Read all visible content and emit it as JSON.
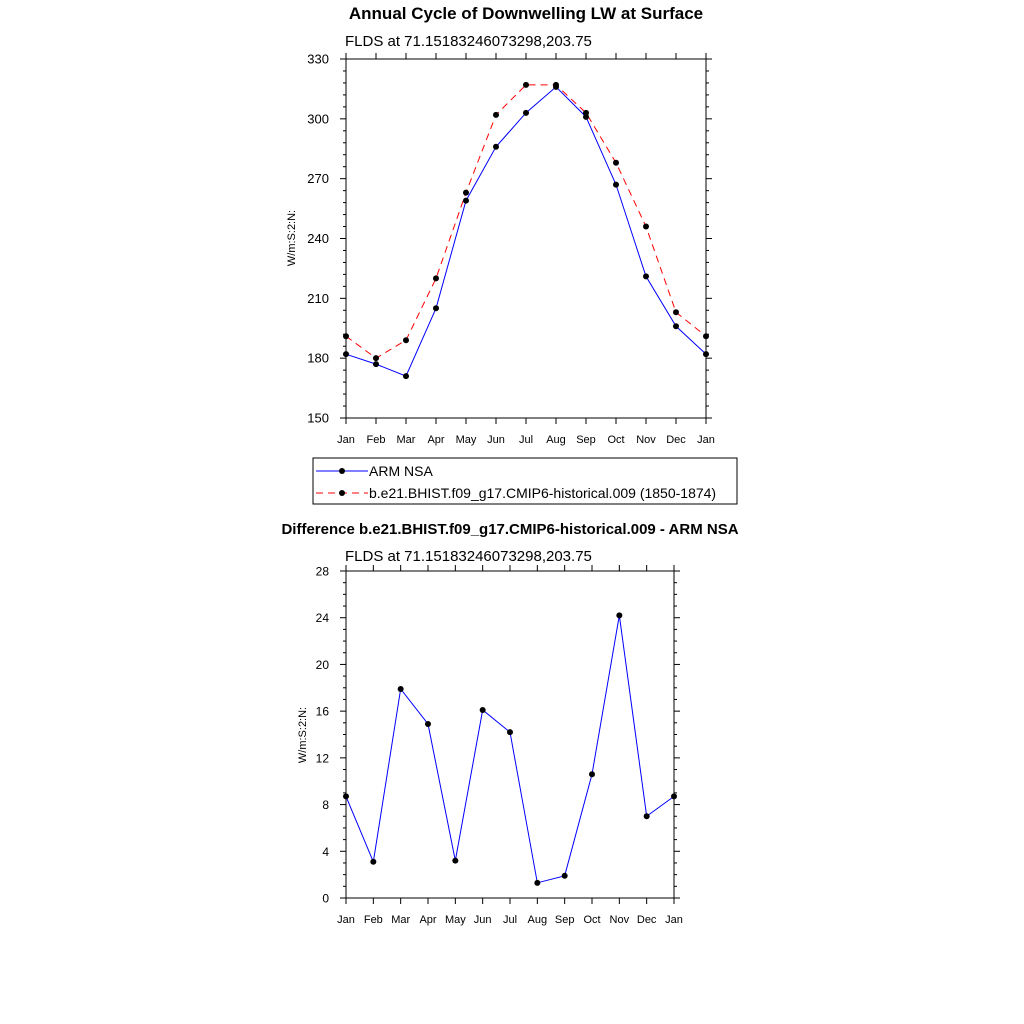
{
  "chart_data": [
    {
      "type": "line",
      "title": "Annual Cycle of Downwelling LW at Surface",
      "subtitle": "FLDS at 71.15183246073298,203.75",
      "xlabel": "",
      "ylabel": "W/m:S:2:N:",
      "categories": [
        "Jan",
        "Feb",
        "Mar",
        "Apr",
        "May",
        "Jun",
        "Jul",
        "Aug",
        "Sep",
        "Oct",
        "Nov",
        "Dec",
        "Jan"
      ],
      "ylim": [
        150,
        330
      ],
      "yticks": [
        150,
        180,
        210,
        240,
        270,
        300,
        330
      ],
      "legend_position": "bottom",
      "series": [
        {
          "name": "ARM NSA",
          "color": "#0000ff",
          "dash": "solid",
          "values": [
            182,
            177,
            171,
            205,
            259,
            286,
            303,
            316,
            301,
            267,
            221,
            196,
            182
          ]
        },
        {
          "name": "b.e21.BHIST.f09_g17.CMIP6-historical.009 (1850-1874)",
          "color": "#ff0000",
          "dash": "dashed",
          "values": [
            191,
            180,
            189,
            220,
            263,
            302,
            317,
            317,
            303,
            278,
            246,
            203,
            191
          ]
        }
      ]
    },
    {
      "type": "line",
      "title": "Difference b.e21.BHIST.f09_g17.CMIP6-historical.009 - ARM NSA",
      "subtitle": "FLDS at 71.15183246073298,203.75",
      "xlabel": "",
      "ylabel": "W/m:S:2:N:",
      "categories": [
        "Jan",
        "Feb",
        "Mar",
        "Apr",
        "May",
        "Jun",
        "Jul",
        "Aug",
        "Sep",
        "Oct",
        "Nov",
        "Dec",
        "Jan"
      ],
      "ylim": [
        0,
        28
      ],
      "yticks": [
        0,
        4,
        8,
        12,
        16,
        20,
        24,
        28
      ],
      "series": [
        {
          "color": "#0000ff",
          "dash": "solid",
          "values": [
            8.7,
            3.1,
            17.9,
            14.9,
            3.2,
            16.1,
            14.2,
            1.3,
            1.9,
            10.6,
            24.2,
            7.0,
            8.7
          ]
        }
      ]
    }
  ]
}
